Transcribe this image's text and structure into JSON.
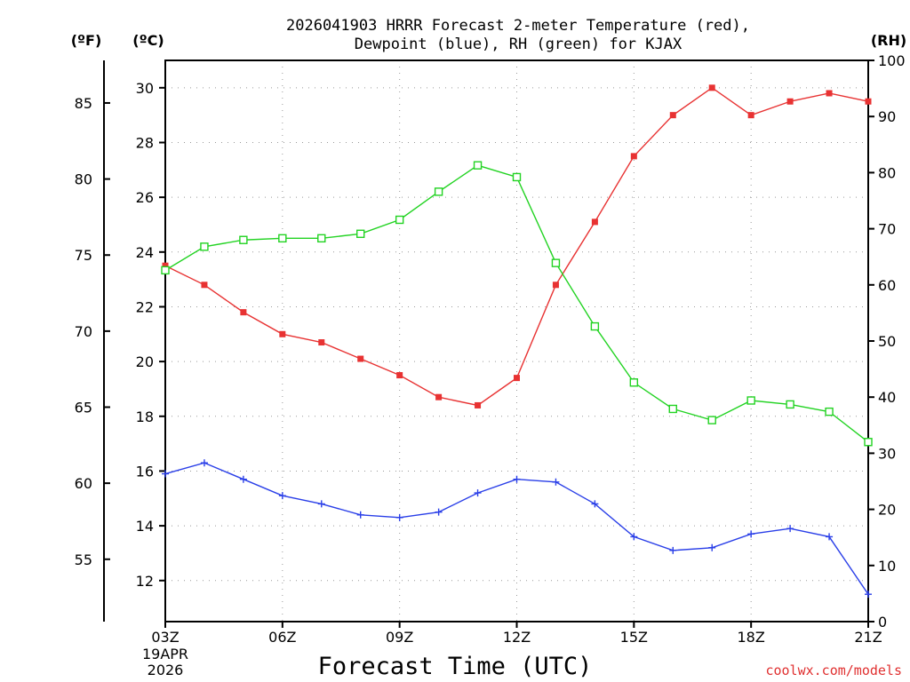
{
  "chart_data": {
    "type": "line",
    "title_lines": [
      "2026041903 HRRR Forecast 2-meter Temperature (red),",
      "Dewpoint (blue), RH (green) for KJAX"
    ],
    "unit_labels": {
      "fahrenheit": "(ºF)",
      "celsius": "(ºC)",
      "rh": "(RH)"
    },
    "xlabel": "Forecast Time (UTC)",
    "credit": "coolwx.com/models",
    "x_hours": [
      0,
      1,
      2,
      3,
      4,
      5,
      6,
      7,
      8,
      9,
      10,
      11,
      12,
      13,
      14,
      15,
      16,
      17,
      18
    ],
    "x_ticks": [
      {
        "hour": 0,
        "label": "03Z",
        "sub": [
          "19APR",
          "2026"
        ]
      },
      {
        "hour": 3,
        "label": "06Z"
      },
      {
        "hour": 6,
        "label": "09Z"
      },
      {
        "hour": 9,
        "label": "12Z"
      },
      {
        "hour": 12,
        "label": "15Z"
      },
      {
        "hour": 15,
        "label": "18Z"
      },
      {
        "hour": 18,
        "label": "21Z"
      }
    ],
    "xlim": [
      0,
      18
    ],
    "celsius_range": [
      10.5,
      31.0
    ],
    "celsius_ticks": [
      12,
      14,
      16,
      18,
      20,
      22,
      24,
      26,
      28,
      30
    ],
    "fahrenheit_ticks": [
      55,
      60,
      65,
      70,
      75,
      80,
      85
    ],
    "rh_range": [
      0,
      100
    ],
    "rh_ticks": [
      0,
      10,
      20,
      30,
      40,
      50,
      60,
      70,
      80,
      90,
      100
    ],
    "series": [
      {
        "name": "Temperature",
        "axis": "celsius",
        "color": "#e83232",
        "marker": "filled-square",
        "values": [
          23.5,
          22.8,
          21.8,
          21.0,
          20.7,
          20.1,
          19.5,
          18.7,
          18.4,
          19.4,
          22.8,
          25.1,
          27.5,
          29.0,
          30.0,
          29.0,
          29.5,
          29.8,
          29.5
        ]
      },
      {
        "name": "Dewpoint",
        "axis": "celsius",
        "color": "#2a3fe8",
        "marker": "plus",
        "values": [
          15.9,
          16.3,
          15.7,
          15.1,
          14.8,
          14.4,
          14.3,
          14.5,
          15.2,
          15.7,
          15.6,
          14.8,
          13.6,
          13.1,
          13.2,
          13.7,
          13.9,
          13.6,
          11.5
        ]
      },
      {
        "name": "RH",
        "axis": "rh",
        "color": "#22d322",
        "marker": "open-square",
        "values": [
          62.6,
          66.8,
          68.0,
          68.3,
          68.3,
          69.1,
          71.6,
          76.6,
          81.3,
          79.2,
          63.9,
          52.6,
          42.6,
          37.9,
          35.9,
          39.4,
          38.7,
          37.4,
          32.0
        ]
      }
    ]
  }
}
